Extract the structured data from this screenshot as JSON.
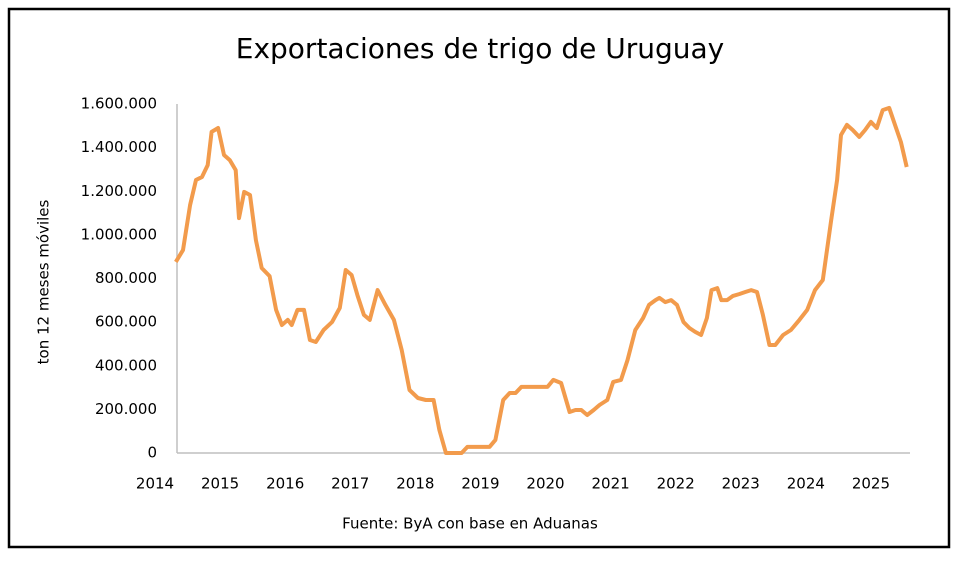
{
  "chart_data": {
    "type": "line",
    "title": "Exportaciones de trigo de Uruguay",
    "y_label": "ton 12 meses móviles",
    "source": "Fuente: ByA con base en Aduanas",
    "xlim": [
      2014,
      2025.6
    ],
    "xticks": [
      2014,
      2015,
      2016,
      2017,
      2018,
      2019,
      2020,
      2021,
      2022,
      2023,
      2024,
      2025
    ],
    "ylim": [
      0,
      1600000
    ],
    "yticks": [
      0,
      {
        "value": 200000,
        "label": "200.000"
      },
      {
        "value": 400000,
        "label": "400.000"
      },
      {
        "value": 600000,
        "label": "600.000"
      },
      {
        "value": 800000,
        "label": "800.000"
      },
      {
        "value": 1000000,
        "label": "1.000.000"
      },
      {
        "value": 1200000,
        "label": "1.200.000"
      },
      {
        "value": 1400000,
        "label": "1.400.000"
      },
      {
        "value": 1600000,
        "label": "1.600.000"
      }
    ],
    "grid": false,
    "color": "#f29b4c",
    "x": [
      2014.32,
      2014.43,
      2014.54,
      2014.63,
      2014.72,
      2014.81,
      2014.87,
      2014.97,
      2015.06,
      2015.15,
      2015.24,
      2015.29,
      2015.37,
      2015.46,
      2015.55,
      2015.64,
      2015.76,
      2015.86,
      2015.95,
      2016.04,
      2016.1,
      2016.19,
      2016.29,
      2016.38,
      2016.47,
      2016.59,
      2016.72,
      2016.84,
      2016.93,
      2017.02,
      2017.11,
      2017.21,
      2017.3,
      2017.42,
      2017.54,
      2017.67,
      2017.79,
      2017.91,
      2018.04,
      2018.16,
      2018.28,
      2018.37,
      2018.47,
      2018.59,
      2018.71,
      2018.8,
      2018.92,
      2019.05,
      2019.14,
      2019.23,
      2019.35,
      2019.45,
      2019.54,
      2019.63,
      2019.75,
      2019.91,
      2020.03,
      2020.12,
      2020.24,
      2020.37,
      2020.46,
      2020.55,
      2020.64,
      2020.74,
      2020.83,
      2020.95,
      2021.04,
      2021.16,
      2021.26,
      2021.38,
      2021.5,
      2021.59,
      2021.69,
      2021.75,
      2021.84,
      2021.93,
      2022.02,
      2022.12,
      2022.21,
      2022.3,
      2022.39,
      2022.48,
      2022.55,
      2022.64,
      2022.7,
      2022.79,
      2022.88,
      2022.98,
      2023.07,
      2023.16,
      2023.25,
      2023.34,
      2023.44,
      2023.53,
      2023.65,
      2023.77,
      2023.9,
      2024.02,
      2024.14,
      2024.26,
      2024.39,
      2024.48,
      2024.54,
      2024.63,
      2024.72,
      2024.82,
      2024.91,
      2025.0,
      2025.09,
      2025.18,
      2025.28,
      2025.37,
      2025.46,
      2025.55
    ],
    "values": [
      876000,
      930000,
      1137000,
      1252000,
      1265000,
      1320000,
      1472000,
      1490000,
      1366000,
      1343000,
      1297000,
      1077000,
      1197000,
      1183000,
      976000,
      848000,
      811000,
      656000,
      587000,
      610000,
      587000,
      656000,
      656000,
      518000,
      509000,
      564000,
      600000,
      665000,
      839000,
      816000,
      724000,
      633000,
      610000,
      747000,
      679000,
      610000,
      472000,
      289000,
      252000,
      243000,
      243000,
      105000,
      0,
      0,
      0,
      28000,
      28000,
      28000,
      28000,
      60000,
      243000,
      275000,
      275000,
      303000,
      303000,
      303000,
      303000,
      335000,
      321000,
      188000,
      197000,
      197000,
      174000,
      197000,
      220000,
      243000,
      326000,
      335000,
      426000,
      564000,
      619000,
      679000,
      701000,
      711000,
      692000,
      701000,
      679000,
      600000,
      573000,
      555000,
      541000,
      619000,
      747000,
      756000,
      701000,
      701000,
      720000,
      729000,
      738000,
      747000,
      738000,
      633000,
      495000,
      495000,
      541000,
      564000,
      610000,
      656000,
      747000,
      793000,
      1068000,
      1252000,
      1458000,
      1504000,
      1481000,
      1449000,
      1481000,
      1518000,
      1490000,
      1572000,
      1582000,
      1504000,
      1426000,
      1311000
    ]
  }
}
